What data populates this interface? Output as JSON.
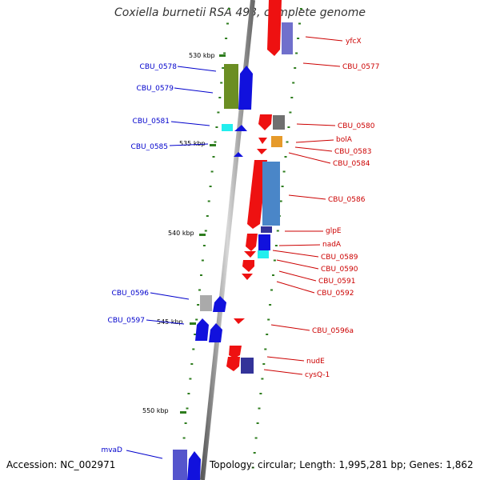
{
  "title": "Coxiella burnetii RSA 493, complete genome",
  "footer": {
    "accession": "Accession: NC_002971",
    "topology": "Topology: circular; Length: 1,995,281 bp; Genes: 1,862"
  },
  "ticks": [
    "530 kbp",
    "535 kbp",
    "540 kbp",
    "545 kbp",
    "550 kbp"
  ],
  "colors": {
    "forward_label": "#cc0000",
    "reverse_label": "#0000cc",
    "tick": "#2e7d1e",
    "backbone": "#888888"
  },
  "forward_genes": [
    "yfcX",
    "CBU_0577",
    "CBU_0580",
    "bolA",
    "CBU_0583",
    "CBU_0584",
    "CBU_0586",
    "glpE",
    "nadA",
    "CBU_0589",
    "CBU_0590",
    "CBU_0591",
    "CBU_0592",
    "CBU_0596a",
    "nudE",
    "cysQ-1"
  ],
  "reverse_genes": [
    "CBU_0578",
    "CBU_0579",
    "CBU_0581",
    "CBU_0585",
    "CBU_0596",
    "CBU_0597",
    "mvaD"
  ]
}
